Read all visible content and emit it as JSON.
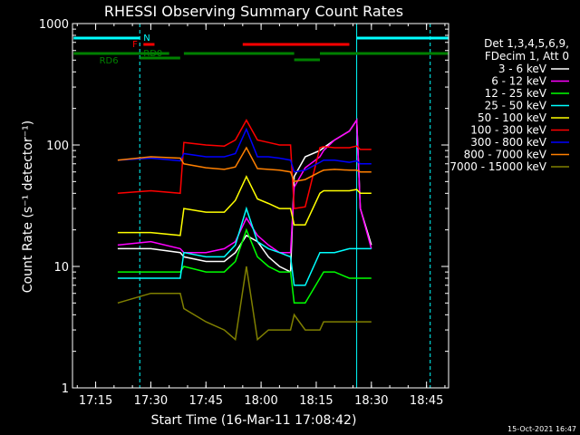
{
  "title": "RHESSI Observing Summary Count Rates",
  "footer_timestamp": "15-Oct-2021 16:47",
  "legend": {
    "header": [
      "Det 1,3,4,5,6,9,",
      "FDecim 1, Att 0"
    ]
  },
  "flags": {
    "N_label": "N",
    "F_label": "F",
    "RD0_label": "RD0",
    "RD6_label": "RD6"
  },
  "colors": {
    "axes": "#ffffff",
    "night": "#00ffff",
    "flare": "#ff0000",
    "decim": "#008000"
  },
  "chart_data": {
    "type": "line",
    "title": "RHESSI Observing Summary Count Rates",
    "xlabel": "Start Time (16-Mar-11 17:08:42)",
    "ylabel": "Count Rate (s⁻¹ detector⁻¹)",
    "x_ticks": [
      "17:15",
      "17:30",
      "17:45",
      "18:00",
      "18:15",
      "18:30",
      "18:45"
    ],
    "y_ticks": [
      "1",
      "10",
      "100",
      "1000"
    ],
    "y_scale": "log",
    "ylim": [
      1,
      1000
    ],
    "xlim": [
      "17:08:42",
      "18:51:00"
    ],
    "x": [
      "17:21",
      "17:30",
      "17:38",
      "17:39",
      "17:45",
      "17:50",
      "17:53",
      "17:56",
      "17:59",
      "18:02",
      "18:05",
      "18:08",
      "18:09",
      "18:12",
      "18:16",
      "18:17",
      "18:20",
      "18:24",
      "18:26",
      "18:27",
      "18:30"
    ],
    "series": [
      {
        "name": "3 - 6 keV",
        "color": "#ffffff",
        "values": [
          14,
          14,
          13,
          12,
          11,
          11,
          13,
          18,
          16,
          12,
          10,
          9,
          55,
          80,
          90,
          95,
          110,
          130,
          160,
          30,
          15
        ]
      },
      {
        "name": "6 - 12 keV",
        "color": "#ff00ff",
        "values": [
          15,
          16,
          14,
          13,
          13,
          14,
          16,
          25,
          18,
          15,
          13,
          13,
          45,
          65,
          80,
          90,
          110,
          130,
          160,
          30,
          14
        ]
      },
      {
        "name": "12 - 25 keV",
        "color": "#00ff00",
        "values": [
          9,
          9,
          9,
          10,
          9,
          9,
          11,
          20,
          12,
          10,
          9,
          9,
          5,
          5,
          8,
          9,
          9,
          8,
          8,
          8,
          8
        ]
      },
      {
        "name": "25 - 50 keV",
        "color": "#00ffff",
        "values": [
          8,
          8,
          8,
          13,
          12,
          12,
          15,
          30,
          16,
          14,
          13,
          12,
          7,
          7,
          13,
          13,
          13,
          14,
          14,
          14,
          14
        ]
      },
      {
        "name": "50 - 100 keV",
        "color": "#ffff00",
        "values": [
          19,
          19,
          18,
          30,
          28,
          28,
          35,
          55,
          36,
          33,
          30,
          30,
          22,
          22,
          40,
          42,
          42,
          42,
          43,
          40,
          40
        ]
      },
      {
        "name": "100 - 300 keV",
        "color": "#ff0000",
        "values": [
          40,
          42,
          40,
          105,
          100,
          98,
          110,
          160,
          110,
          105,
          100,
          100,
          30,
          31,
          95,
          97,
          95,
          95,
          98,
          92,
          92
        ]
      },
      {
        "name": "300 - 800 keV",
        "color": "#0000ff",
        "values": [
          75,
          78,
          74,
          85,
          80,
          80,
          85,
          135,
          80,
          80,
          78,
          75,
          60,
          62,
          72,
          75,
          75,
          72,
          74,
          70,
          70
        ]
      },
      {
        "name": "800 - 7000 keV",
        "color": "#ff8000",
        "values": [
          75,
          80,
          78,
          70,
          65,
          63,
          66,
          95,
          64,
          63,
          62,
          60,
          50,
          52,
          60,
          62,
          63,
          62,
          62,
          60,
          60
        ]
      },
      {
        "name": "7000 - 15000 keV",
        "color": "#808000",
        "values": [
          5,
          6,
          6,
          4.5,
          3.5,
          3,
          2.5,
          10,
          2.5,
          3,
          3,
          3,
          4,
          3,
          3,
          3.5,
          3.5,
          3.5,
          3.5,
          3.5,
          3.5
        ]
      }
    ]
  }
}
